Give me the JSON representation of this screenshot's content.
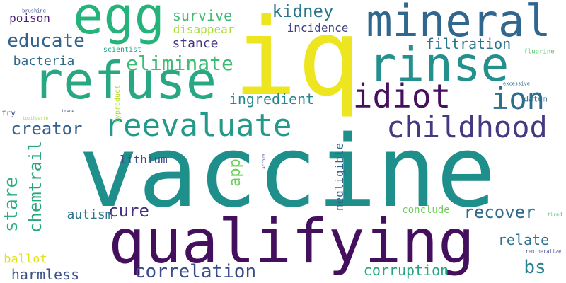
{
  "words": [
    {
      "id": "vaccine",
      "text": "vaccine",
      "color": "#1f8f8b"
    },
    {
      "id": "qualifying",
      "text": "qualifying",
      "color": "#440f5c"
    },
    {
      "id": "iq",
      "text": "iq",
      "color": "#ece520"
    },
    {
      "id": "refuse",
      "text": "refuse",
      "color": "#28a783"
    },
    {
      "id": "mineral",
      "text": "mineral",
      "color": "#30678e"
    },
    {
      "id": "egg",
      "text": "egg",
      "color": "#26b37b"
    },
    {
      "id": "rinse",
      "text": "rinse",
      "color": "#23908d"
    },
    {
      "id": "reevaluate",
      "text": "reevaluate",
      "color": "#239a89"
    },
    {
      "id": "childhood",
      "text": "childhood",
      "color": "#453982"
    },
    {
      "id": "idiot",
      "text": "idiot",
      "color": "#46105f"
    },
    {
      "id": "ion",
      "text": "ion",
      "color": "#2d6e8e"
    },
    {
      "id": "correlation",
      "text": "correlation",
      "color": "#3a4d8b"
    },
    {
      "id": "eliminate",
      "text": "eliminate",
      "color": "#3cbc74"
    },
    {
      "id": "educate",
      "text": "educate",
      "color": "#33638d"
    },
    {
      "id": "creator",
      "text": "creator",
      "color": "#34608d"
    },
    {
      "id": "recover",
      "text": "recover",
      "color": "#306a8e"
    },
    {
      "id": "kidney",
      "text": "kidney",
      "color": "#2a788e"
    },
    {
      "id": "survive",
      "text": "survive",
      "color": "#3cbb75"
    },
    {
      "id": "stare",
      "text": "stare",
      "color": "#2ab07f"
    },
    {
      "id": "chemtrail",
      "text": "chemtrail",
      "color": "#2aa67c"
    },
    {
      "id": "cure",
      "text": "cure",
      "color": "#46307e"
    },
    {
      "id": "bs",
      "text": "bs",
      "color": "#26828e"
    },
    {
      "id": "corruption",
      "text": "corruption",
      "color": "#23a483"
    },
    {
      "id": "ingredient",
      "text": "ingredient",
      "color": "#23888e"
    },
    {
      "id": "filtration",
      "text": "filtration",
      "color": "#2b748e"
    },
    {
      "id": "relate",
      "text": "relate",
      "color": "#2c728e"
    },
    {
      "id": "harmless",
      "text": "harmless",
      "color": "#3b528b"
    },
    {
      "id": "app",
      "text": "app",
      "color": "#6ccd5a"
    },
    {
      "id": "stance",
      "text": "stance",
      "color": "#443983"
    },
    {
      "id": "bacteria",
      "text": "bacteria",
      "color": "#2f6b8e"
    },
    {
      "id": "poison",
      "text": "poison",
      "color": "#481f70"
    },
    {
      "id": "disappear",
      "text": "disappear",
      "color": "#a8db34"
    },
    {
      "id": "incidence",
      "text": "incidence",
      "color": "#404387"
    },
    {
      "id": "autism",
      "text": "autism",
      "color": "#2c738e"
    },
    {
      "id": "lithium",
      "text": "lithium",
      "color": "#3e4a89"
    },
    {
      "id": "ballot",
      "text": "ballot",
      "color": "#e1e319"
    },
    {
      "id": "negligible",
      "text": "negligible",
      "color": "#32648e"
    },
    {
      "id": "conclude",
      "text": "conclude",
      "color": "#6ece58"
    },
    {
      "id": "datum",
      "text": "datum",
      "color": "#2d708e"
    },
    {
      "id": "scientist",
      "text": "scientist",
      "color": "#1fa187"
    },
    {
      "id": "fry",
      "text": "fry",
      "color": "#414487"
    },
    {
      "id": "byproduct",
      "text": "byproduct",
      "color": "#b5de2b"
    },
    {
      "id": "fluorine",
      "text": "fluorine",
      "color": "#52c569"
    },
    {
      "id": "excessive",
      "text": "excessive",
      "color": "#2e6f8e"
    },
    {
      "id": "brushing",
      "text": "brushing",
      "color": "#3b528b"
    },
    {
      "id": "toothpaste",
      "text": "toothpaste",
      "color": "#a0da39"
    },
    {
      "id": "trace",
      "text": "trace",
      "color": "#3e4989"
    },
    {
      "id": "accord",
      "text": "accord",
      "color": "#3b528b"
    },
    {
      "id": "tired",
      "text": "tired",
      "color": "#52c569"
    },
    {
      "id": "remineralize",
      "text": "remineralize",
      "color": "#3e4989"
    }
  ]
}
